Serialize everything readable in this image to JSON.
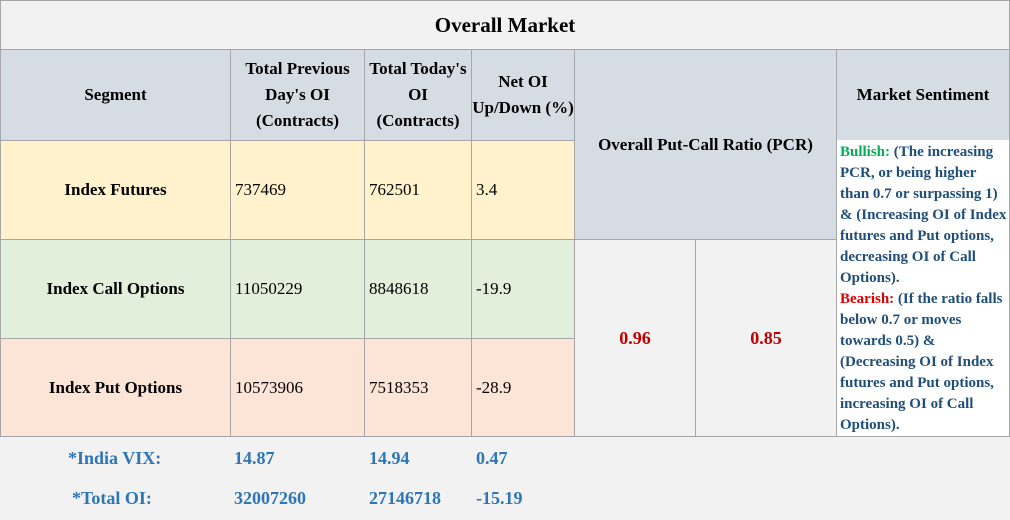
{
  "title": "Overall Market",
  "headers": {
    "segment": "Segment",
    "prev_oi": "Total Previous Day's OI (Contracts)",
    "today_oi": "Total Today's OI (Contracts)",
    "net_oi": "Net OI Up/Down (%)",
    "pcr": "Overall Put-Call Ratio (PCR)",
    "sentiment": "Market Sentiment"
  },
  "rows": [
    {
      "segment": "Index Futures",
      "prev_oi": "737469",
      "today_oi": "762501",
      "net_oi": "3.4"
    },
    {
      "segment": "Index Call Options",
      "prev_oi": "11050229",
      "today_oi": "8848618",
      "net_oi": "-19.9"
    },
    {
      "segment": "Index Put Options",
      "prev_oi": "10573906",
      "today_oi": "7518353",
      "net_oi": "-28.9"
    }
  ],
  "pcr_values": [
    "0.96",
    "0.85"
  ],
  "sentiment": {
    "bullish_label": "Bullish:",
    "bullish_text": "(The increasing PCR, or being higher than 0.7 or surpassing 1) & (Increasing OI of Index futures and Put options, decreasing OI of Call Options).",
    "bearish_label": "Bearish:",
    "bearish_text": "(If the ratio falls below 0.7 or moves towards 0.5) & (Decreasing OI of Index futures and Put options, increasing OI of Call Options)."
  },
  "footer": [
    {
      "label": "*India VIX:",
      "prev": "14.87",
      "today": "14.94",
      "change": "0.47"
    },
    {
      "label": "*Total OI:",
      "prev": "32007260",
      "today": "27146718",
      "change": "-15.19"
    }
  ],
  "colors": {
    "header_bg": "#d6dce4",
    "futures_bg": "#fff2cc",
    "calls_bg": "#e2efda",
    "puts_bg": "#fce4d6",
    "pcr_value": "#c00000",
    "bullish": "#00b050",
    "bearish": "#e00000",
    "sentiment_text": "#1f4e79",
    "footer_text": "#2e75b6"
  }
}
